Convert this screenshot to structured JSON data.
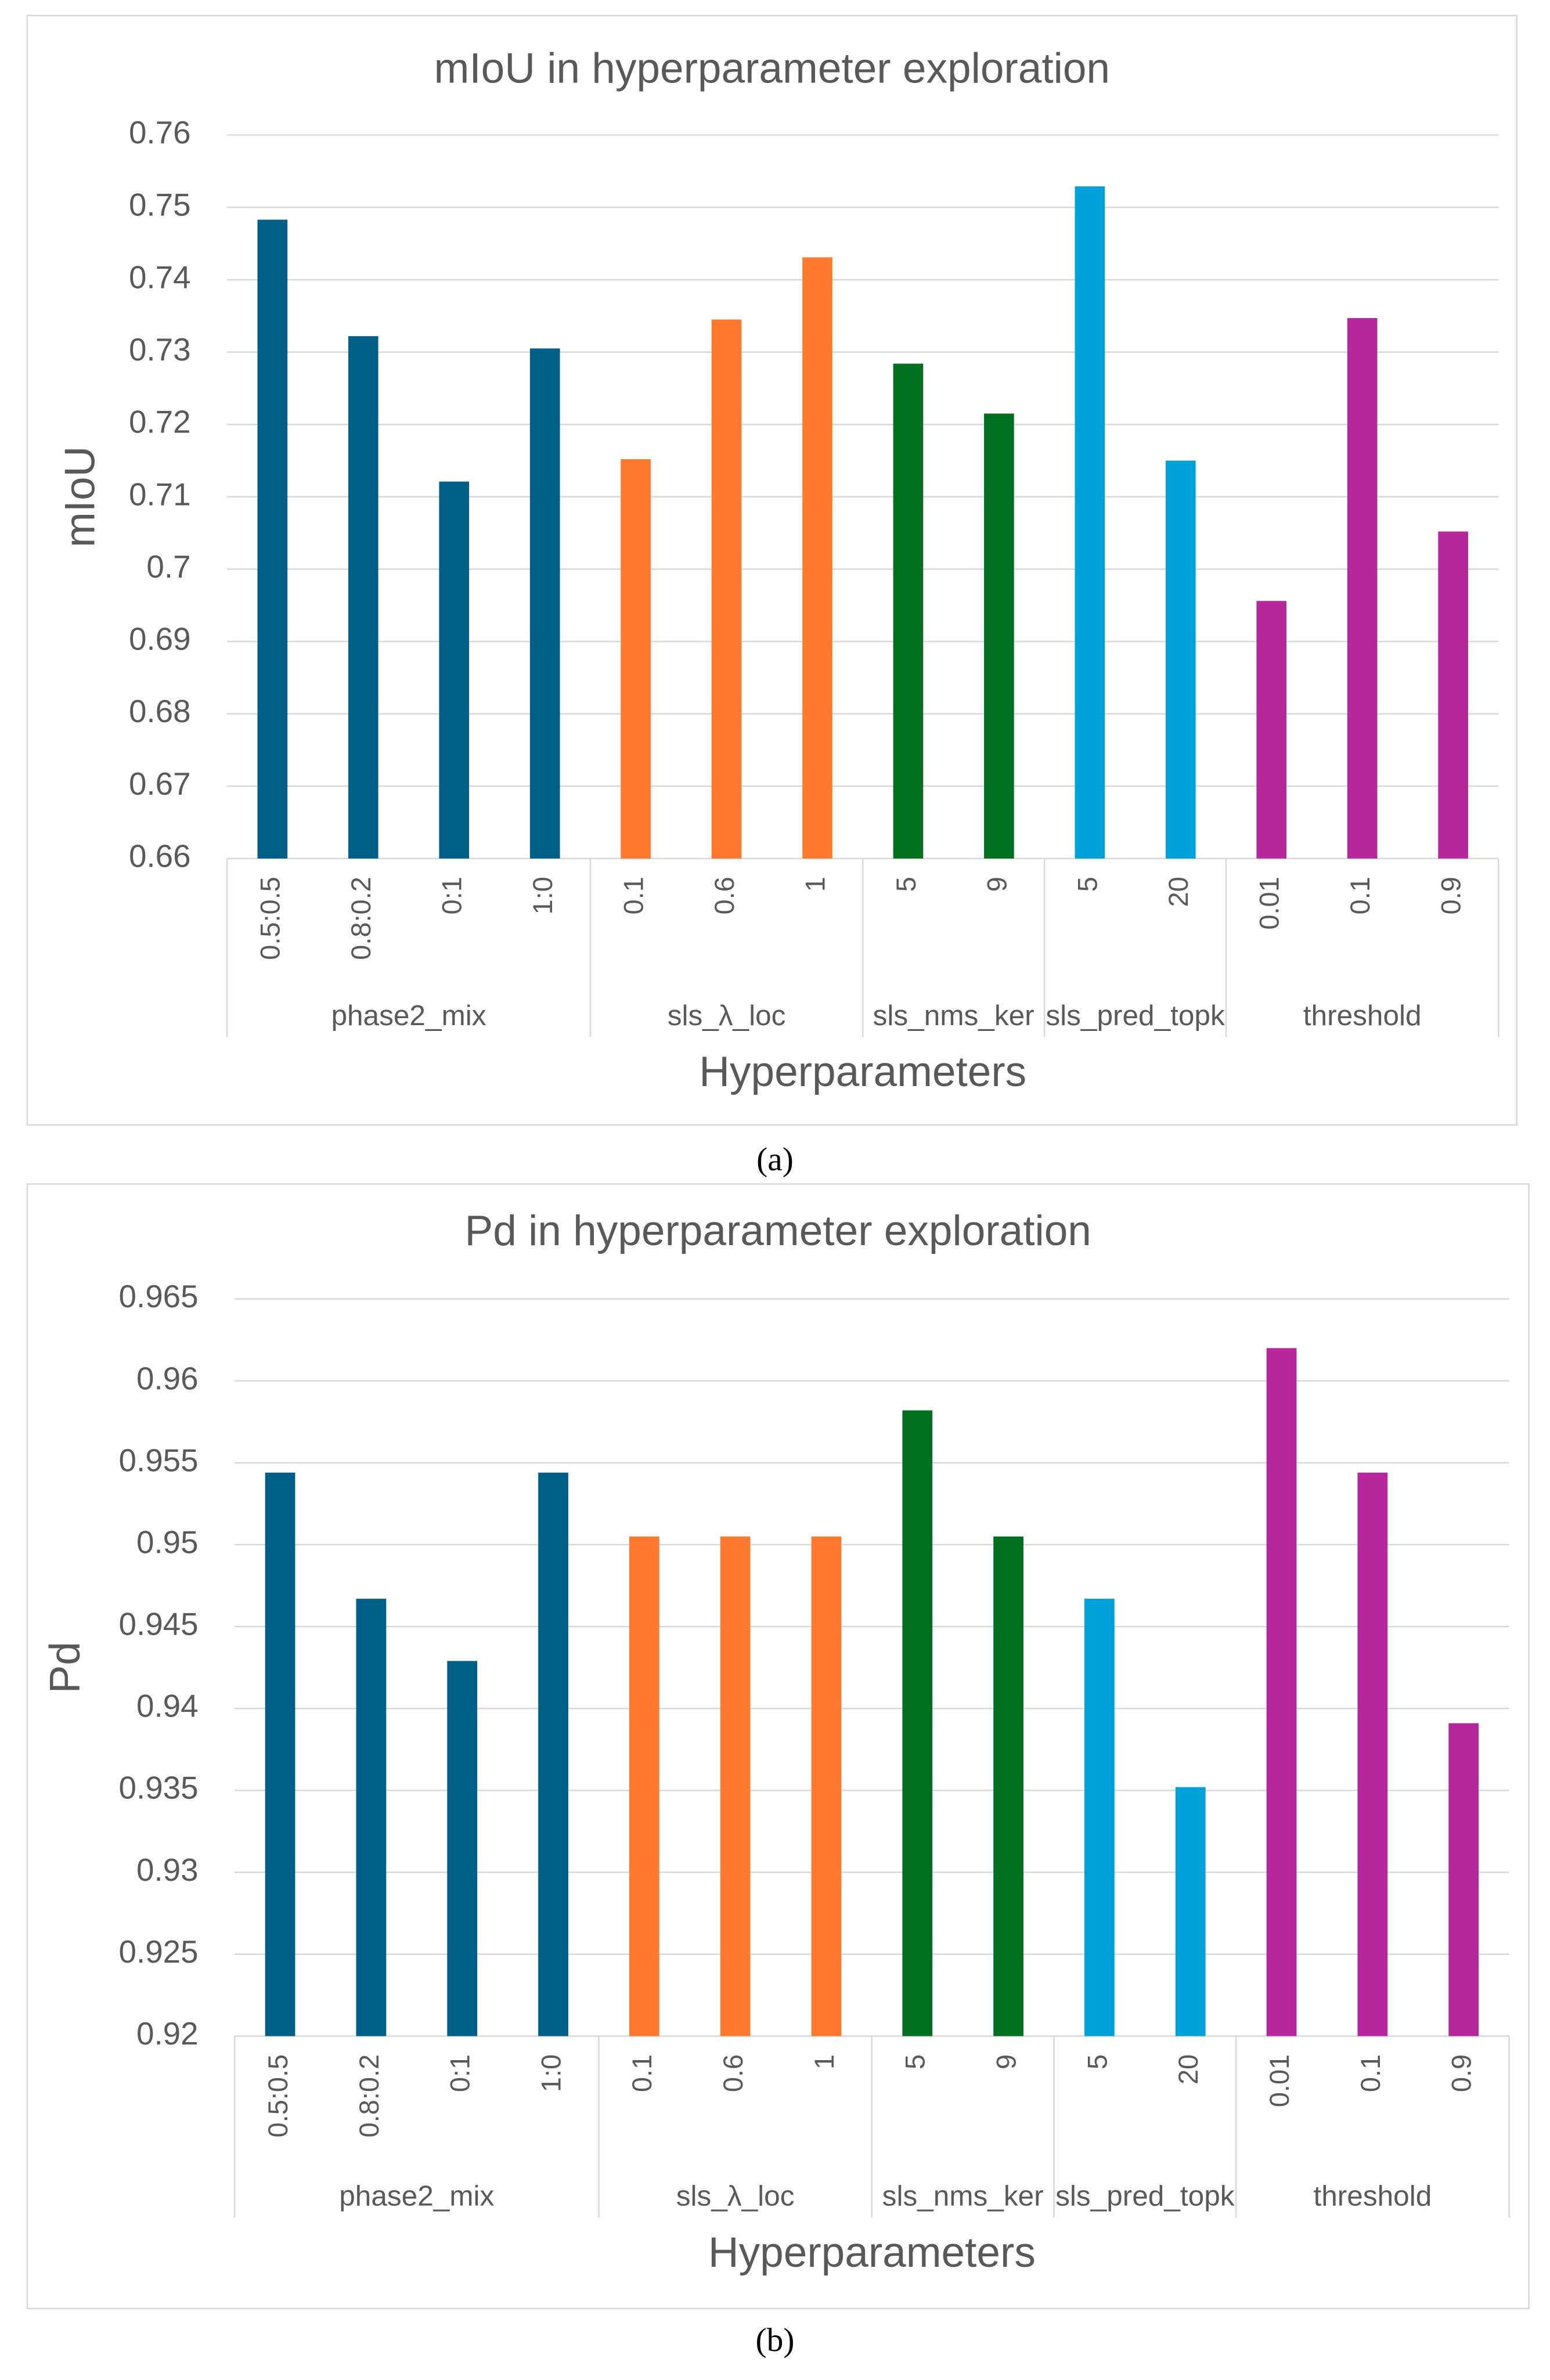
{
  "chart_data": [
    {
      "type": "bar",
      "title": "mIoU in hyperparameter exploration",
      "xlabel": "Hyperparameters",
      "ylabel": "mIoU",
      "caption": "(a)",
      "ylim": [
        0.66,
        0.76
      ],
      "yticks": [
        0.66,
        0.67,
        0.68,
        0.69,
        0.7,
        0.71,
        0.72,
        0.73,
        0.74,
        0.75,
        0.76
      ],
      "grid": true,
      "series": [
        {
          "name": "phase2_mix",
          "color": "#005f87",
          "categories": [
            "0.5:0.5",
            "0.8:0.2",
            "0:1",
            "1:0"
          ],
          "values": [
            0.7483,
            0.7322,
            0.7121,
            0.7305
          ]
        },
        {
          "name": "sls_λ_loc",
          "color": "#ff7a2e",
          "categories": [
            "0.1",
            "0.6",
            "1"
          ],
          "values": [
            0.7152,
            0.7345,
            0.7431
          ]
        },
        {
          "name": "sls_nms_ker",
          "color": "#006f1f",
          "categories": [
            "5",
            "9"
          ],
          "values": [
            0.7284,
            0.7215
          ]
        },
        {
          "name": "sls_pred_topk",
          "color": "#00a0d8",
          "categories": [
            "5",
            "20"
          ],
          "values": [
            0.7529,
            0.715
          ]
        },
        {
          "name": "threshold",
          "color": "#b5279a",
          "categories": [
            "0.01",
            "0.1",
            "0.9"
          ],
          "values": [
            0.6956,
            0.7347,
            0.7052
          ]
        }
      ]
    },
    {
      "type": "bar",
      "title": "Pd in hyperparameter exploration",
      "xlabel": "Hyperparameters",
      "ylabel": "Pd",
      "caption": "(b)",
      "ylim": [
        0.92,
        0.965
      ],
      "yticks": [
        0.92,
        0.925,
        0.93,
        0.935,
        0.94,
        0.945,
        0.95,
        0.955,
        0.96,
        0.965
      ],
      "grid": true,
      "series": [
        {
          "name": "phase2_mix",
          "color": "#005f87",
          "categories": [
            "0.5:0.5",
            "0.8:0.2",
            "0:1",
            "1:0"
          ],
          "values": [
            0.9544,
            0.9467,
            0.9429,
            0.9544
          ]
        },
        {
          "name": "sls_λ_loc",
          "color": "#ff7a2e",
          "categories": [
            "0.1",
            "0.6",
            "1"
          ],
          "values": [
            0.9505,
            0.9505,
            0.9505
          ]
        },
        {
          "name": "sls_nms_ker",
          "color": "#006f1f",
          "categories": [
            "5",
            "9"
          ],
          "values": [
            0.9582,
            0.9505
          ]
        },
        {
          "name": "sls_pred_topk",
          "color": "#00a0d8",
          "categories": [
            "5",
            "20"
          ],
          "values": [
            0.9467,
            0.9352
          ]
        },
        {
          "name": "threshold",
          "color": "#b5279a",
          "categories": [
            "0.01",
            "0.1",
            "0.9"
          ],
          "values": [
            0.962,
            0.9544,
            0.9391
          ]
        }
      ]
    }
  ]
}
